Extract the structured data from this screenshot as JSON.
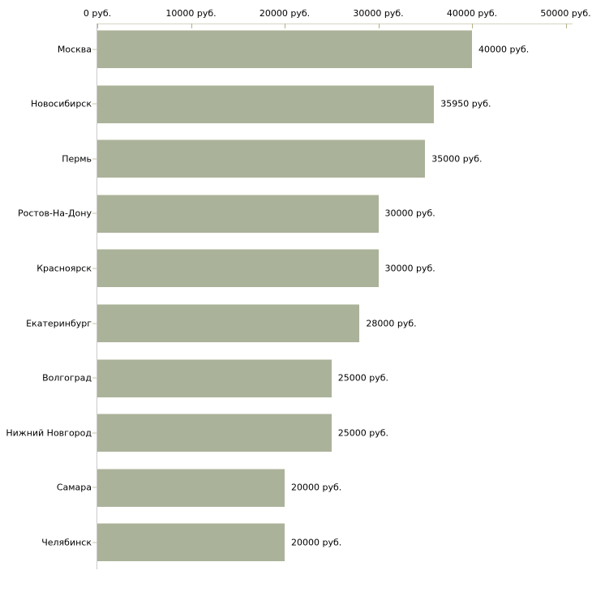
{
  "chart_data": {
    "type": "bar",
    "orientation": "horizontal",
    "title": "",
    "xlabel": "",
    "ylabel": "",
    "unit": "руб.",
    "categories": [
      "Москва",
      "Новосибирск",
      "Пермь",
      "Ростов-На-Дону",
      "Красноярск",
      "Екатеринбург",
      "Волгоград",
      "Нижний Новгород",
      "Самара",
      "Челябинск"
    ],
    "values": [
      40000,
      35950,
      35000,
      30000,
      30000,
      28000,
      25000,
      25000,
      20000,
      20000
    ],
    "value_labels": [
      "40000 руб.",
      "35950 руб.",
      "35000 руб.",
      "30000 руб.",
      "30000 руб.",
      "28000 руб.",
      "25000 руб.",
      "25000 руб.",
      "20000 руб.",
      "20000 руб."
    ],
    "x_axis": {
      "position": "top",
      "range": [
        0,
        50000
      ],
      "ticks": [
        0,
        10000,
        20000,
        30000,
        40000,
        50000
      ],
      "tick_labels": [
        "0 руб.",
        "10000 руб.",
        "20000 руб.",
        "30000 руб.",
        "40000 руб.",
        "50000 руб."
      ]
    },
    "legend": null,
    "grid": false,
    "colors": {
      "bar_fill": "#abb29a",
      "bar_top_edge": "#d3d7c6",
      "x_axis_line": "#d6d4c4",
      "x_tick_mark": "#b3b088",
      "y_axis_line": "#cbcbcb",
      "category_tick": "#c8c39c",
      "text": "#000000",
      "background": "#ffffff"
    }
  }
}
